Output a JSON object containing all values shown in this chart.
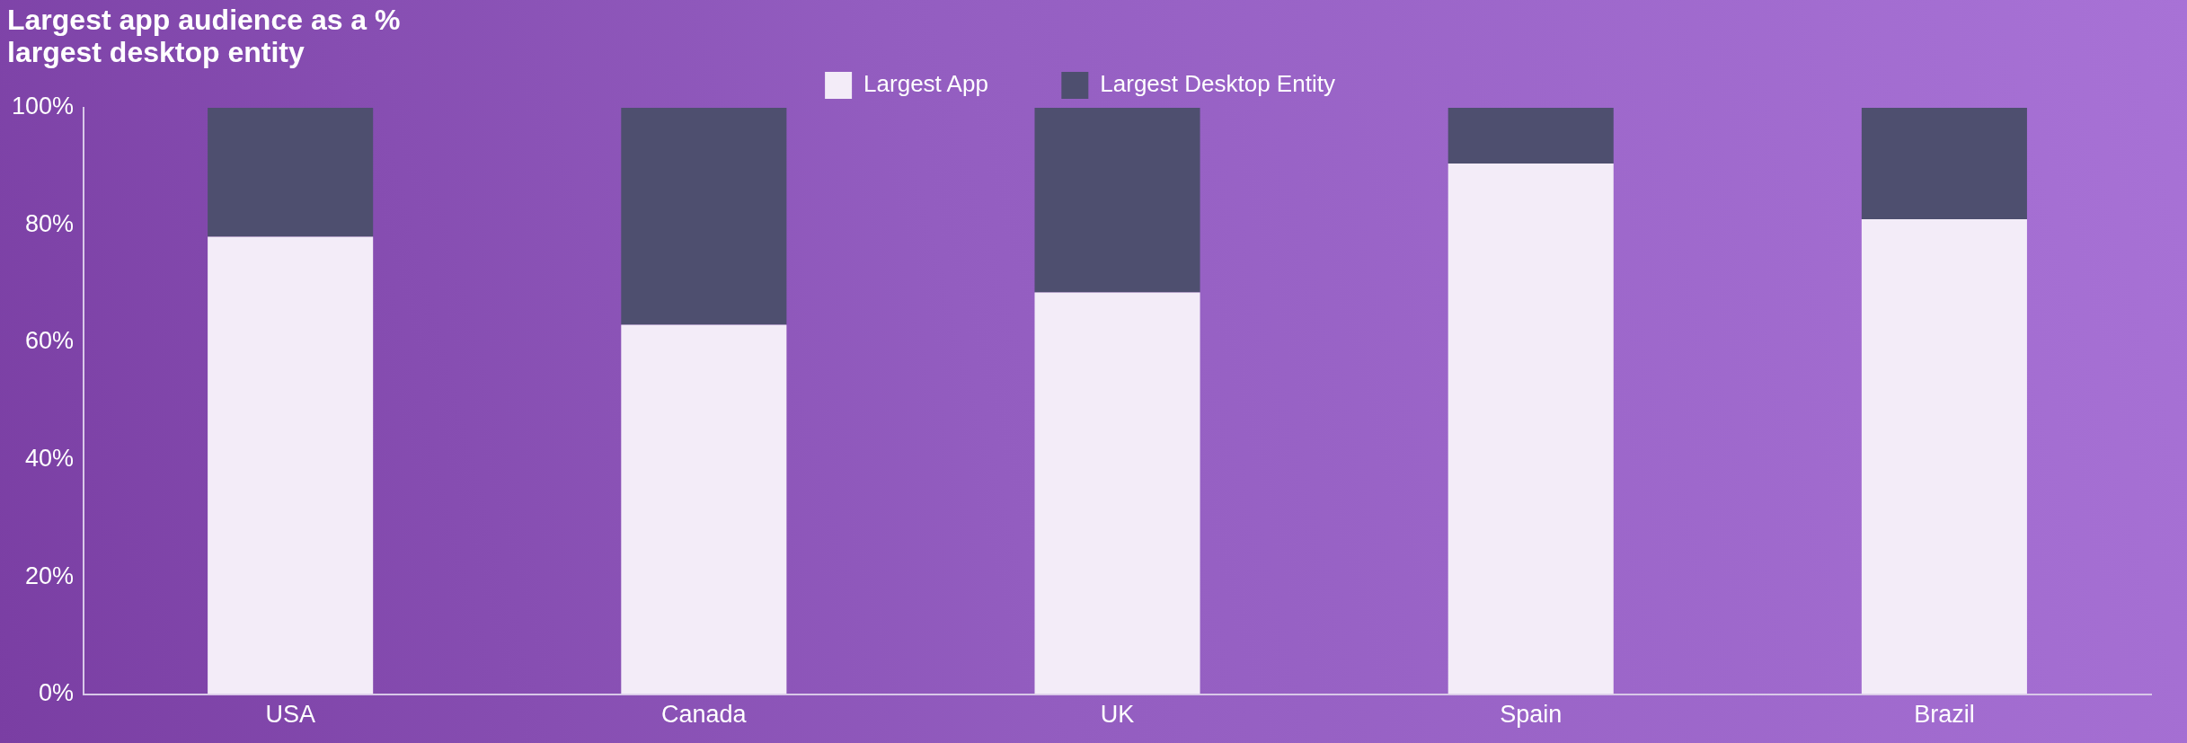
{
  "chart_data": {
    "type": "bar",
    "title": "Largest app audience as a % largest desktop entity",
    "categories": [
      "USA",
      "Canada",
      "UK",
      "Spain",
      "Brazil"
    ],
    "stacked": true,
    "series": [
      {
        "name": "Largest App",
        "color": "#f3ecf8",
        "values": [
          78,
          63,
          68.5,
          90.5,
          81
        ]
      },
      {
        "name": "Largest Desktop Entity",
        "color": "#4e4f6f",
        "values": [
          22,
          37,
          31.5,
          9.5,
          19
        ]
      }
    ],
    "ylim": [
      0,
      100
    ],
    "yticks": [
      {
        "value": 0,
        "label": "0%"
      },
      {
        "value": 20,
        "label": "20%"
      },
      {
        "value": 40,
        "label": "40%"
      },
      {
        "value": 60,
        "label": "60%"
      },
      {
        "value": 80,
        "label": "80%"
      },
      {
        "value": 100,
        "label": "100%"
      }
    ],
    "grid": false,
    "legend": "top"
  }
}
